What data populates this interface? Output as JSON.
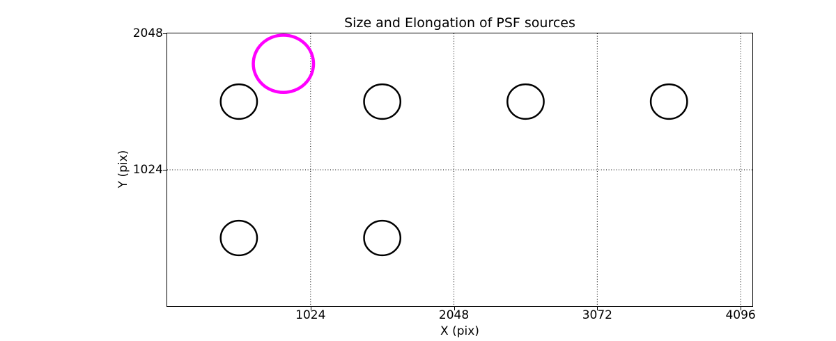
{
  "figure_title": "Size and Elongation of PSF sources",
  "chart_data": {
    "type": "scatter",
    "title": "Size and Elongation of PSF sources",
    "xlabel": "X (pix)",
    "ylabel": "Y (pix)",
    "xlim": [
      0,
      4180
    ],
    "ylim": [
      0,
      2048
    ],
    "xticks": [
      1024,
      2048,
      3072,
      4096
    ],
    "yticks": [
      1024,
      2048
    ],
    "grid": {
      "style": "dotted",
      "color": "#000000",
      "on": true
    },
    "legend": "none",
    "colors": {
      "normal_source": "#000000",
      "highlight_source": "#ff00ff",
      "background": "#ffffff",
      "axes": "#000000"
    },
    "sources": [
      {
        "x": 512,
        "y": 1536,
        "r": 130,
        "color": "#000000",
        "lw": 2.5
      },
      {
        "x": 1536,
        "y": 1536,
        "r": 130,
        "color": "#000000",
        "lw": 2.5
      },
      {
        "x": 2560,
        "y": 1536,
        "r": 130,
        "color": "#000000",
        "lw": 2.5
      },
      {
        "x": 3584,
        "y": 1536,
        "r": 130,
        "color": "#000000",
        "lw": 2.5
      },
      {
        "x": 512,
        "y": 512,
        "r": 130,
        "color": "#000000",
        "lw": 2.5
      },
      {
        "x": 1536,
        "y": 512,
        "r": 130,
        "color": "#000000",
        "lw": 2.5
      },
      {
        "x": 830,
        "y": 1820,
        "r": 215,
        "color": "#ff00ff",
        "lw": 4.5
      }
    ]
  }
}
